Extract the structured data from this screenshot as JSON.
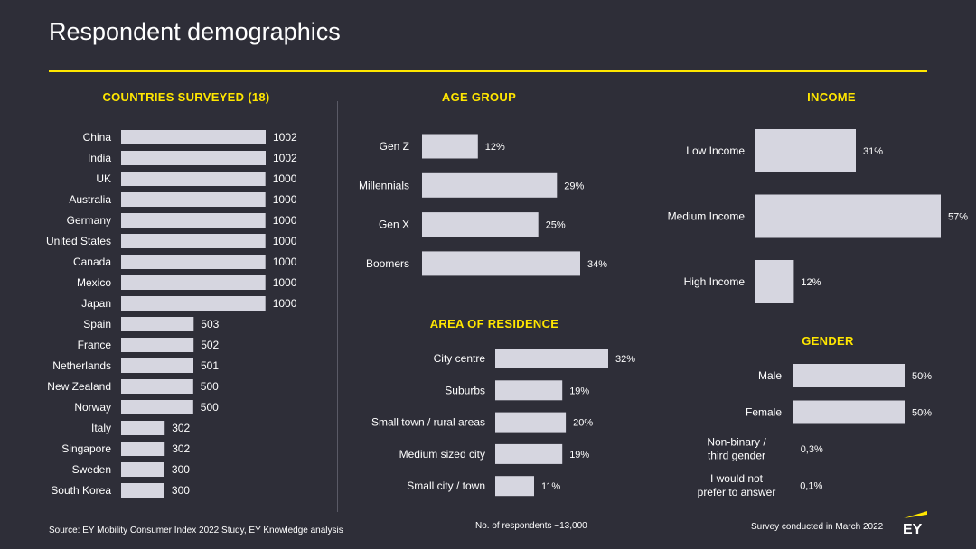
{
  "title": "Respondent demographics",
  "colors": {
    "accent": "#ffe600",
    "bar": "#d6d6e0",
    "background": "#2e2e38"
  },
  "footer": {
    "source": "Source: EY Mobility Consumer Index 2022 Study, EY Knowledge analysis",
    "respondents": "No. of respondents ~13,000",
    "survey": "Survey conducted in March 2022",
    "logo": "EY"
  },
  "chart_data": [
    {
      "type": "bar",
      "orientation": "horizontal",
      "title": "COUNTRIES SURVEYED (18)",
      "categories": [
        "China",
        "India",
        "UK",
        "Australia",
        "Germany",
        "United States",
        "Canada",
        "Mexico",
        "Japan",
        "Spain",
        "France",
        "Netherlands",
        "New Zealand",
        "Norway",
        "Italy",
        "Singapore",
        "Sweden",
        "South Korea"
      ],
      "values": [
        1002,
        1002,
        1000,
        1000,
        1000,
        1000,
        1000,
        1000,
        1000,
        503,
        502,
        501,
        500,
        500,
        302,
        302,
        300,
        300
      ],
      "labels": [
        "1002",
        "1002",
        "1000",
        "1000",
        "1000",
        "1000",
        "1000",
        "1000",
        "1000",
        "503",
        "502",
        "501",
        "500",
        "500",
        "302",
        "302",
        "300",
        "300"
      ]
    },
    {
      "type": "bar",
      "orientation": "horizontal",
      "title": "AGE GROUP",
      "categories": [
        "Gen Z",
        "Millennials",
        "Gen X",
        "Boomers"
      ],
      "values": [
        12,
        29,
        25,
        34
      ],
      "labels": [
        "12%",
        "29%",
        "25%",
        "34%"
      ]
    },
    {
      "type": "bar",
      "orientation": "horizontal",
      "title": "AREA OF RESIDENCE",
      "categories": [
        "City centre",
        "Suburbs",
        "Small town / rural areas",
        "Medium sized city",
        "Small city / town"
      ],
      "values": [
        32,
        19,
        20,
        19,
        11
      ],
      "labels": [
        "32%",
        "19%",
        "20%",
        "19%",
        "11%"
      ]
    },
    {
      "type": "bar",
      "orientation": "horizontal",
      "title": "INCOME",
      "categories": [
        "Low Income",
        "Medium Income",
        "High Income"
      ],
      "values": [
        31,
        57,
        12
      ],
      "labels": [
        "31%",
        "57%",
        "12%"
      ]
    },
    {
      "type": "bar",
      "orientation": "horizontal",
      "title": "GENDER",
      "categories": [
        "Male",
        "Female",
        "Non-binary / third gender",
        "I would not prefer to answer"
      ],
      "values": [
        50,
        50,
        0.3,
        0.1
      ],
      "labels": [
        "50%",
        "50%",
        "0,3%",
        "0,1%"
      ]
    }
  ]
}
